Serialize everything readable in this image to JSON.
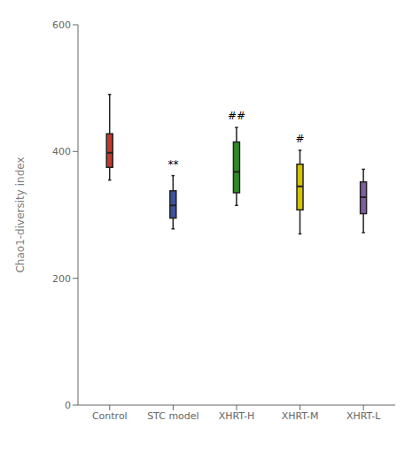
{
  "chart_data": {
    "type": "box",
    "categories": [
      "Control",
      "STC model",
      "XHRT-H",
      "XHRT-M",
      "XHRT-L"
    ],
    "boxes": [
      {
        "whislo": 355,
        "q1": 375,
        "med": 398,
        "q3": 428,
        "whishi": 490
      },
      {
        "whislo": 278,
        "q1": 295,
        "med": 315,
        "q3": 338,
        "whishi": 362
      },
      {
        "whislo": 315,
        "q1": 335,
        "med": 368,
        "q3": 415,
        "whishi": 438
      },
      {
        "whislo": 270,
        "q1": 308,
        "med": 345,
        "q3": 380,
        "whishi": 402
      },
      {
        "whislo": 272,
        "q1": 302,
        "med": 328,
        "q3": 352,
        "whishi": 372
      }
    ],
    "colors": [
      "#C0392B",
      "#4050A0",
      "#2E8B25",
      "#D4C400",
      "#8060A0"
    ],
    "annotations": [
      {
        "text": "**",
        "x": "STC model",
        "y": 366
      },
      {
        "text": "##",
        "x": "XHRT-H",
        "y": 442
      },
      {
        "text": "#",
        "x": "XHRT-M",
        "y": 406
      }
    ],
    "ylabel": "Chao1-diversity index",
    "ylim": [
      0,
      600
    ],
    "yticks": [
      0,
      200,
      400,
      600
    ],
    "grid": false
  }
}
